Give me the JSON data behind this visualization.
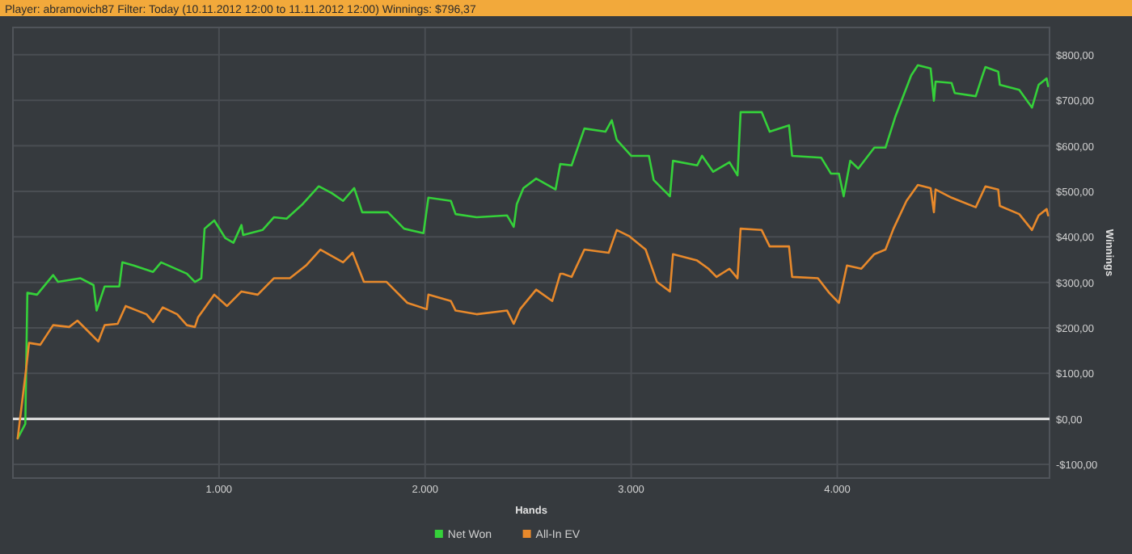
{
  "chart_data": {
    "type": "line",
    "title": "Player: abramovich87 Filter: Today (10.11.2012 12:00 to 11.11.2012 12:00) Winnings: $796,37",
    "xlabel": "Hands",
    "ylabel": "Winnings",
    "xlim": [
      0,
      5030
    ],
    "ylim": [
      -130,
      860
    ],
    "xticks": [
      {
        "value": 1000,
        "label": "1.000"
      },
      {
        "value": 2000,
        "label": "2.000"
      },
      {
        "value": 3000,
        "label": "3.000"
      },
      {
        "value": 4000,
        "label": "4.000"
      }
    ],
    "yticks": [
      {
        "value": -100,
        "label": "-$100,00"
      },
      {
        "value": 0,
        "label": "$0,00"
      },
      {
        "value": 100,
        "label": "$100,00"
      },
      {
        "value": 200,
        "label": "$200,00"
      },
      {
        "value": 300,
        "label": "$300,00"
      },
      {
        "value": 400,
        "label": "$400,00"
      },
      {
        "value": 500,
        "label": "$500,00"
      },
      {
        "value": 600,
        "label": "$600,00"
      },
      {
        "value": 700,
        "label": "$700,00"
      },
      {
        "value": 800,
        "label": "$800,00"
      }
    ],
    "grid": true,
    "legend": "bottom",
    "marker": "none",
    "line_style": "solid",
    "ref_lines": [
      {
        "axis": "y",
        "value": 0,
        "color": "#e8e8e8"
      }
    ],
    "series": [
      {
        "name": "Net Won",
        "color": "#35d13a",
        "x": [
          23,
          60,
          70,
          117,
          195,
          219,
          328,
          391,
          406,
          445,
          516,
          531,
          586,
          680,
          719,
          844,
          883,
          914,
          930,
          977,
          1031,
          1070,
          1109,
          1117,
          1211,
          1266,
          1328,
          1406,
          1484,
          1547,
          1602,
          1656,
          1695,
          1820,
          1898,
          1992,
          2016,
          2125,
          2148,
          2250,
          2398,
          2430,
          2445,
          2477,
          2539,
          2633,
          2656,
          2711,
          2773,
          2875,
          2906,
          2930,
          3000,
          3086,
          3109,
          3188,
          3203,
          3320,
          3344,
          3398,
          3477,
          3516,
          3531,
          3633,
          3672,
          3766,
          3781,
          3922,
          3969,
          4008,
          4031,
          4063,
          4102,
          4180,
          4234,
          4281,
          4359,
          4391,
          4453,
          4469,
          4477,
          4555,
          4570,
          4672,
          4703,
          4719,
          4781,
          4789,
          4883,
          4945,
          4977,
          5016,
          5023
        ],
        "values": [
          -43,
          -11,
          277,
          273,
          316,
          301,
          309,
          294,
          238,
          291,
          291,
          344,
          337,
          323,
          344,
          319,
          301,
          309,
          418,
          436,
          397,
          387,
          426,
          404,
          415,
          443,
          440,
          472,
          511,
          496,
          479,
          507,
          454,
          454,
          418,
          408,
          486,
          479,
          450,
          443,
          447,
          422,
          472,
          507,
          528,
          504,
          560,
          557,
          638,
          631,
          656,
          613,
          578,
          578,
          525,
          489,
          567,
          557,
          578,
          543,
          564,
          535,
          674,
          674,
          631,
          645,
          578,
          574,
          539,
          539,
          489,
          567,
          550,
          596,
          596,
          663,
          755,
          777,
          770,
          699,
          741,
          738,
          716,
          709,
          752,
          773,
          763,
          734,
          723,
          684,
          734,
          748,
          731
        ]
      },
      {
        "name": "All-In EV",
        "color": "#e8892b",
        "x": [
          23,
          63,
          78,
          133,
          195,
          273,
          313,
          375,
          414,
          445,
          508,
          547,
          648,
          680,
          727,
          797,
          844,
          883,
          898,
          977,
          1039,
          1109,
          1188,
          1266,
          1344,
          1422,
          1492,
          1602,
          1648,
          1703,
          1813,
          1914,
          2008,
          2016,
          2125,
          2148,
          2250,
          2398,
          2430,
          2461,
          2539,
          2617,
          2656,
          2668,
          2711,
          2773,
          2891,
          2930,
          2992,
          3070,
          3125,
          3188,
          3203,
          3320,
          3375,
          3414,
          3477,
          3516,
          3531,
          3633,
          3672,
          3766,
          3781,
          3906,
          3961,
          4008,
          4047,
          4117,
          4180,
          4234,
          4273,
          4336,
          4391,
          4453,
          4469,
          4477,
          4555,
          4672,
          4719,
          4781,
          4789,
          4883,
          4945,
          4977,
          5016,
          5023
        ],
        "values": [
          -43,
          106,
          167,
          163,
          206,
          202,
          216,
          188,
          170,
          206,
          209,
          248,
          230,
          213,
          245,
          230,
          206,
          202,
          223,
          273,
          248,
          280,
          273,
          309,
          309,
          337,
          372,
          344,
          365,
          301,
          301,
          255,
          241,
          273,
          259,
          238,
          230,
          238,
          209,
          241,
          284,
          259,
          319,
          319,
          312,
          372,
          365,
          415,
          401,
          372,
          301,
          280,
          362,
          348,
          330,
          312,
          330,
          309,
          418,
          415,
          379,
          379,
          312,
          309,
          277,
          255,
          337,
          330,
          362,
          372,
          418,
          479,
          514,
          507,
          454,
          504,
          486,
          465,
          511,
          504,
          468,
          450,
          415,
          447,
          461,
          447
        ]
      }
    ]
  }
}
